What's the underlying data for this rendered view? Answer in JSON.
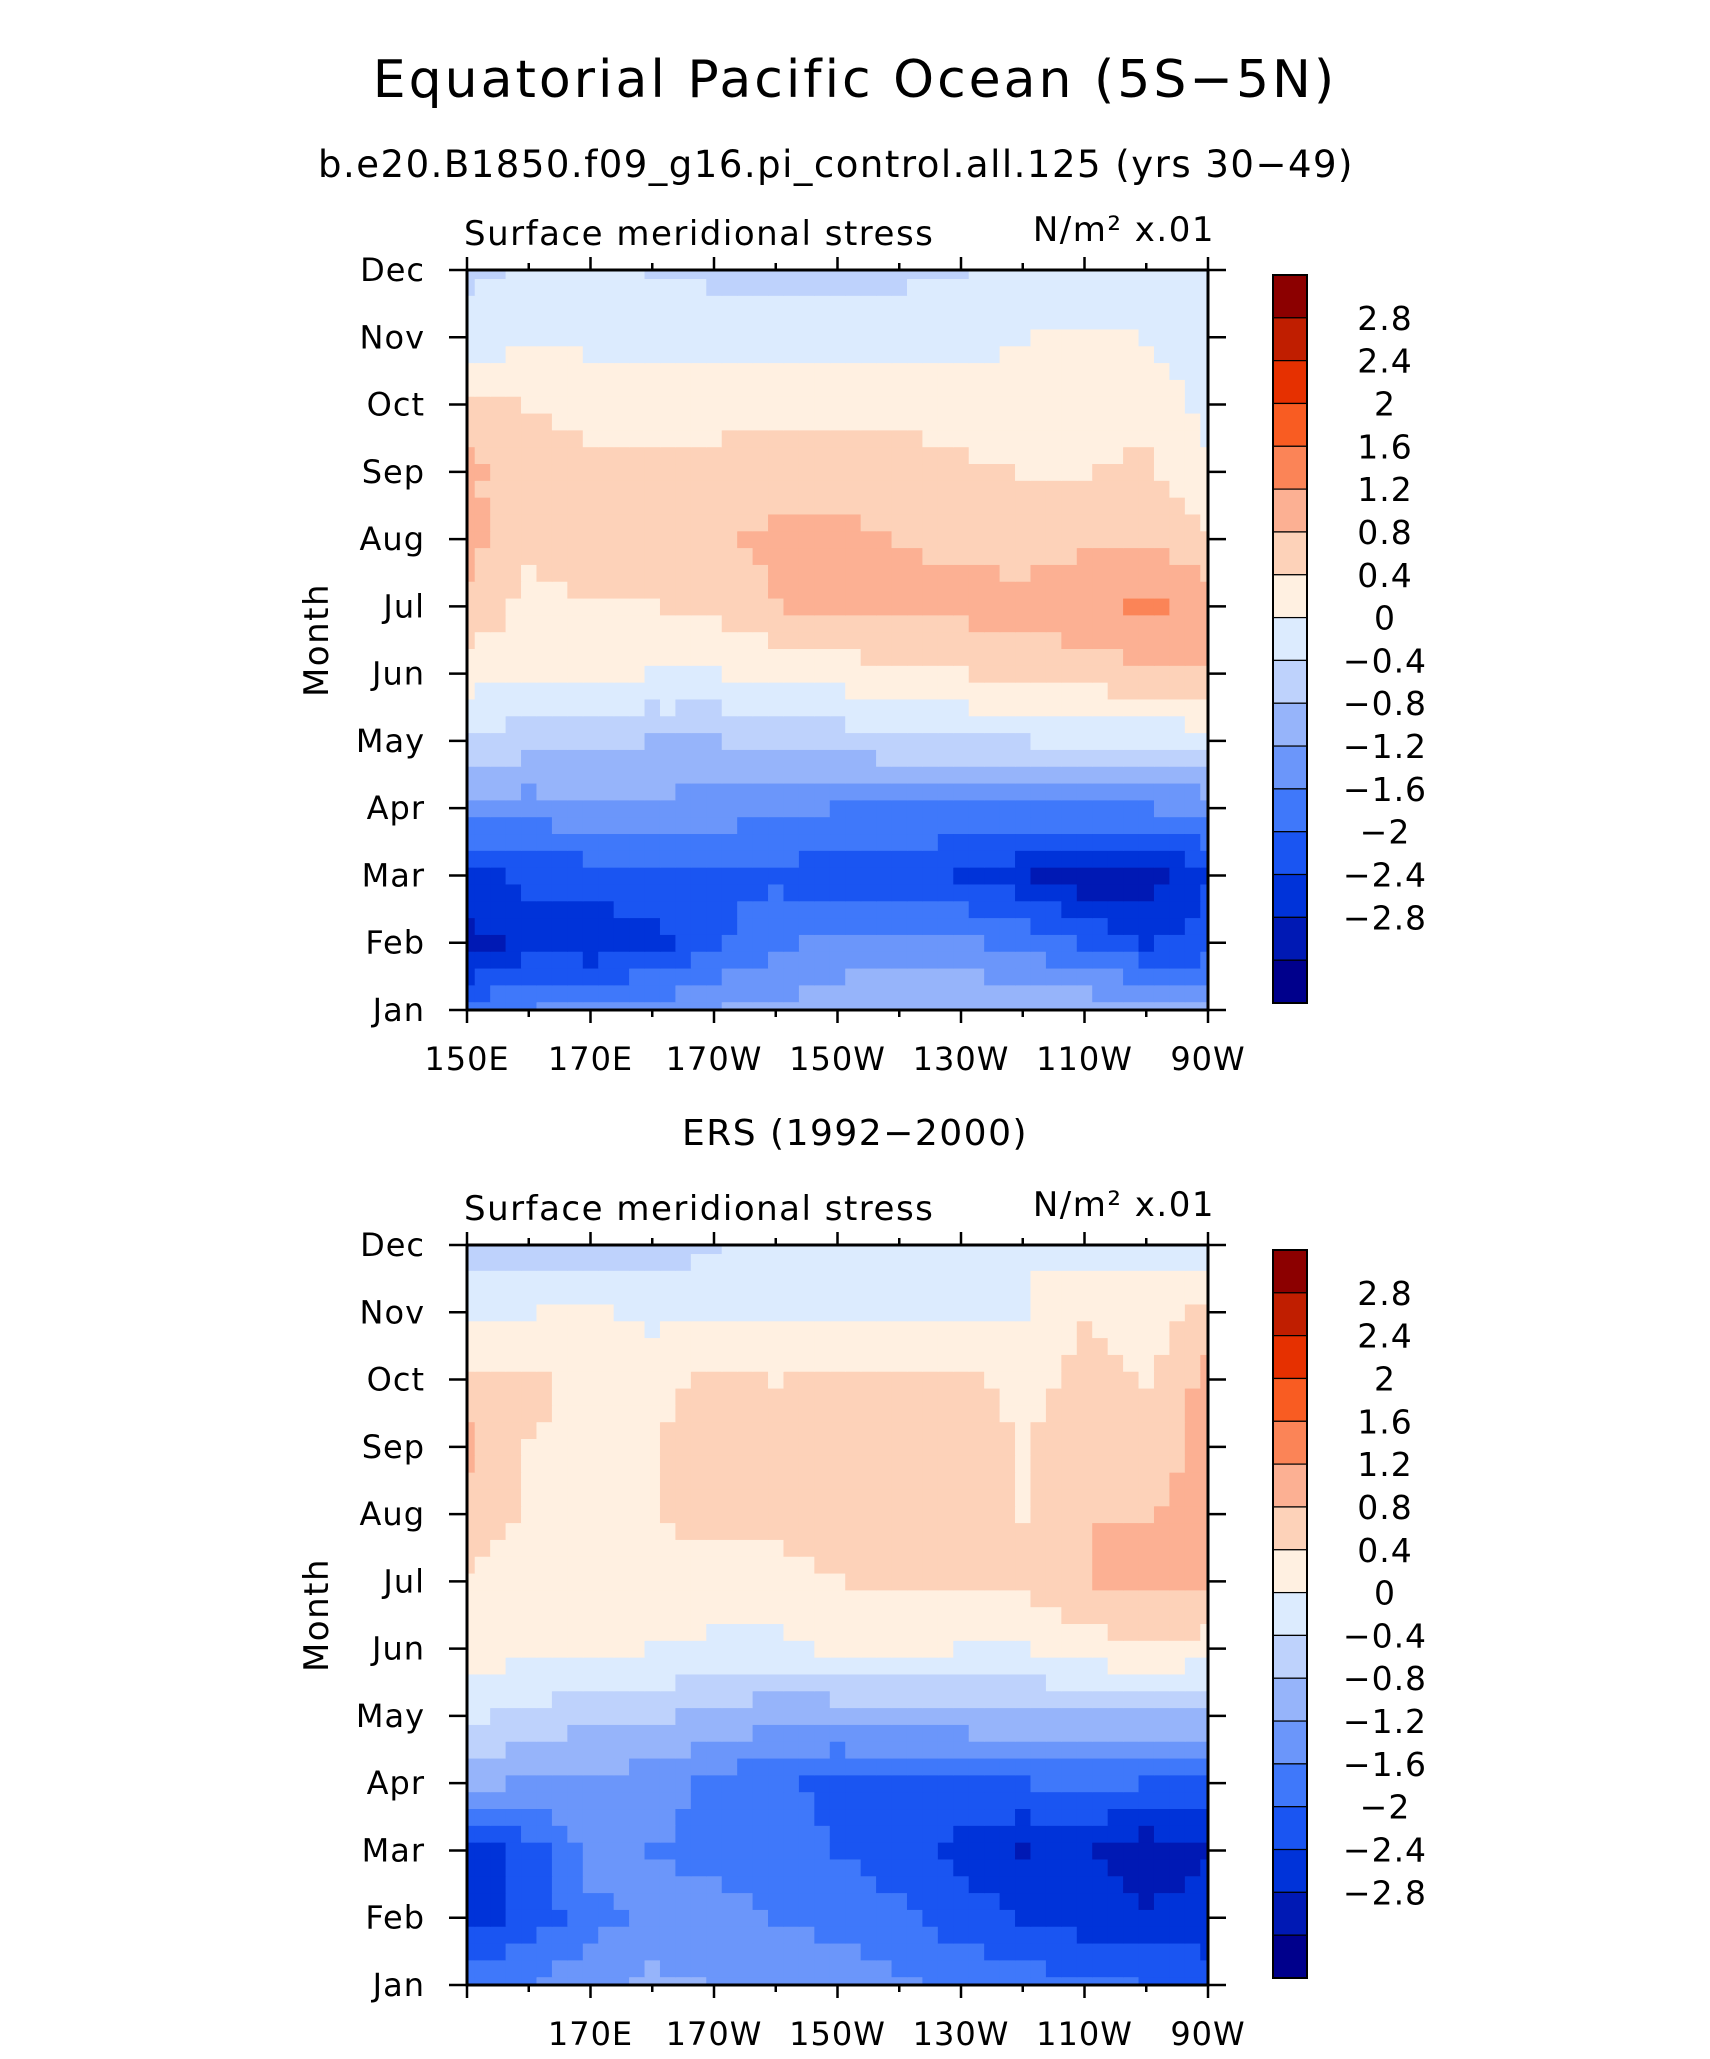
{
  "figure": {
    "title": "Equatorial Pacific Ocean (5S−5N)",
    "subtitle": "b.e20.B1850.f09_g16.pi_control.all.125 (yrs 30−49)",
    "colors": [
      "#00008c",
      "#0019b4",
      "#0033d9",
      "#1a55f2",
      "#3f78fa",
      "#6b96fa",
      "#96b4fa",
      "#bed2fc",
      "#dcebfe",
      "#fff0e1",
      "#fdd2b9",
      "#fcb093",
      "#fb8457",
      "#f95c22",
      "#e63000",
      "#c01e00",
      "#8c0000"
    ]
  },
  "chart_data": [
    {
      "type": "heatmap",
      "panel_title": "",
      "title": "Surface meridional stress",
      "units": "N/m² x.01",
      "ylabel": "Month",
      "x_tick_labels": [
        "150E",
        "170E",
        "170W",
        "150W",
        "130W",
        "110W",
        "90W"
      ],
      "x_ticks_deg_east": [
        150,
        170,
        190,
        210,
        230,
        250,
        270
      ],
      "xlim": [
        150,
        270
      ],
      "y_tick_labels": [
        "Jan",
        "Feb",
        "Mar",
        "Apr",
        "May",
        "Jun",
        "Jul",
        "Aug",
        "Sep",
        "Oct",
        "Nov",
        "Dec"
      ],
      "ylim": [
        1,
        12
      ],
      "colorbar_labels": [
        "2.8",
        "2.4",
        "2",
        "1.6",
        "1.2",
        "0.8",
        "0.4",
        "0",
        "−0.4",
        "−0.8",
        "−1.2",
        "−1.6",
        "−2",
        "−2.4",
        "−2.8"
      ],
      "levels": [
        -2.8,
        -2.4,
        -2.0,
        -1.6,
        -1.2,
        -0.8,
        -0.4,
        0,
        0.4,
        0.8,
        1.2,
        1.6,
        2.0,
        2.4,
        2.8
      ],
      "x": [
        150,
        160,
        170,
        180,
        190,
        200,
        210,
        220,
        230,
        240,
        250,
        260,
        270
      ],
      "values": [
        [
          -1.4,
          -1.2,
          -1.1,
          -1.0,
          -0.8,
          -0.7,
          -0.6,
          -0.5,
          -0.4,
          -0.4,
          -0.5,
          -0.6,
          -0.7
        ],
        [
          -2.6,
          -2.2,
          -2.3,
          -2.1,
          -1.7,
          -1.3,
          -1.0,
          -1.0,
          -1.1,
          -1.3,
          -1.6,
          -2.0,
          -1.9
        ],
        [
          -2.1,
          -1.9,
          -1.8,
          -1.7,
          -1.6,
          -1.7,
          -1.9,
          -1.9,
          -2.0,
          -2.3,
          -2.7,
          -2.6,
          -2.0
        ],
        [
          -1.0,
          -1.0,
          -0.9,
          -0.9,
          -1.0,
          -1.1,
          -1.2,
          -1.2,
          -1.3,
          -1.3,
          -1.2,
          -1.2,
          -1.1
        ],
        [
          -0.1,
          -0.2,
          -0.3,
          -0.4,
          -0.4,
          -0.3,
          -0.2,
          -0.1,
          0.0,
          0.0,
          0.05,
          0.1,
          0.2
        ],
        [
          0.6,
          0.5,
          0.5,
          0.4,
          0.4,
          0.5,
          0.6,
          0.7,
          0.8,
          0.9,
          1.0,
          1.1,
          1.2
        ],
        [
          1.1,
          0.7,
          0.8,
          0.8,
          0.9,
          1.2,
          1.3,
          1.3,
          1.3,
          1.4,
          1.5,
          1.7,
          1.5
        ],
        [
          1.3,
          0.9,
          1.0,
          1.0,
          1.1,
          1.3,
          1.3,
          1.2,
          1.1,
          1.0,
          1.1,
          1.2,
          0.9
        ],
        [
          1.3,
          0.9,
          0.9,
          0.9,
          0.9,
          1.0,
          1.0,
          1.0,
          0.9,
          0.8,
          0.8,
          0.9,
          0.5
        ],
        [
          0.9,
          0.8,
          0.7,
          0.7,
          0.7,
          0.7,
          0.7,
          0.7,
          0.6,
          0.5,
          0.7,
          0.6,
          0.3
        ],
        [
          0.2,
          0.3,
          0.3,
          0.3,
          0.3,
          0.3,
          0.3,
          0.3,
          0.3,
          0.4,
          0.5,
          0.4,
          0.2
        ],
        [
          -0.1,
          0.1,
          0.1,
          0.0,
          -0.1,
          -0.2,
          -0.2,
          -0.1,
          0.0,
          0.1,
          0.1,
          0.1,
          0.1
        ]
      ]
    },
    {
      "type": "heatmap",
      "panel_title": "ERS (1992−2000)",
      "title": "Surface meridional stress",
      "units": "N/m² x.01",
      "ylabel": "Month",
      "x_tick_labels": [
        "170E",
        "170W",
        "150W",
        "130W",
        "110W",
        "90W"
      ],
      "x_ticks_deg_east": [
        170,
        190,
        210,
        230,
        250,
        270
      ],
      "xlim": [
        150,
        270
      ],
      "y_tick_labels": [
        "Jan",
        "Feb",
        "Mar",
        "Apr",
        "May",
        "Jun",
        "Jul",
        "Aug",
        "Sep",
        "Oct",
        "Nov",
        "Dec"
      ],
      "ylim": [
        1,
        12
      ],
      "colorbar_labels": [
        "2.8",
        "2.4",
        "2",
        "1.6",
        "1.2",
        "0.8",
        "0.4",
        "0",
        "−0.4",
        "−0.8",
        "−1.2",
        "−1.6",
        "−2",
        "−2.4",
        "−2.8"
      ],
      "levels": [
        -2.8,
        -2.4,
        -2.0,
        -1.6,
        -1.2,
        -0.8,
        -0.4,
        0,
        0.4,
        0.8,
        1.2,
        1.6,
        2.0,
        2.4,
        2.8
      ],
      "x": [
        150,
        160,
        170,
        180,
        190,
        200,
        210,
        220,
        230,
        240,
        250,
        260,
        270
      ],
      "values": [
        [
          -1.3,
          -1.2,
          -0.9,
          -0.7,
          -0.8,
          -0.9,
          -1.0,
          -1.1,
          -1.3,
          -1.4,
          -1.5,
          -1.6,
          -1.7
        ],
        [
          -2.2,
          -1.9,
          -1.3,
          -1.1,
          -1.0,
          -1.2,
          -1.3,
          -1.5,
          -1.8,
          -2.0,
          -2.2,
          -2.3,
          -2.3
        ],
        [
          -2.2,
          -1.8,
          -1.0,
          -1.2,
          -1.3,
          -1.5,
          -1.6,
          -1.8,
          -2.1,
          -2.4,
          -2.3,
          -2.7,
          -2.4
        ],
        [
          -0.6,
          -0.9,
          -0.9,
          -1.0,
          -1.3,
          -1.5,
          -1.7,
          -1.7,
          -1.7,
          -1.6,
          -1.5,
          -1.6,
          -1.6
        ],
        [
          0.1,
          -0.1,
          -0.3,
          -0.3,
          -0.5,
          -0.7,
          -0.7,
          -0.6,
          -0.5,
          -0.5,
          -0.4,
          -0.5,
          -0.4
        ],
        [
          0.6,
          0.5,
          0.5,
          0.4,
          0.3,
          0.3,
          0.5,
          0.5,
          0.4,
          0.4,
          0.6,
          0.8,
          0.6
        ],
        [
          0.8,
          0.7,
          0.7,
          0.7,
          0.7,
          0.7,
          0.8,
          0.9,
          0.9,
          0.9,
          1.2,
          1.3,
          1.3
        ],
        [
          0.9,
          0.8,
          0.7,
          0.8,
          0.9,
          0.9,
          1.0,
          1.0,
          1.0,
          0.8,
          1.2,
          1.2,
          1.4
        ],
        [
          1.3,
          0.8,
          0.7,
          0.8,
          1.0,
          1.0,
          0.9,
          1.0,
          0.9,
          0.8,
          0.9,
          0.9,
          1.4
        ],
        [
          0.9,
          0.9,
          0.7,
          0.7,
          0.9,
          0.8,
          0.9,
          0.9,
          0.9,
          0.7,
          0.9,
          0.8,
          1.3
        ],
        [
          0.3,
          0.4,
          0.5,
          0.3,
          0.3,
          0.3,
          0.4,
          0.4,
          0.4,
          0.4,
          0.8,
          0.6,
          0.9
        ],
        [
          -0.2,
          -0.3,
          -0.3,
          -0.2,
          0.0,
          0.1,
          0.2,
          0.2,
          0.3,
          0.4,
          0.2,
          0.3,
          0.2
        ]
      ]
    }
  ]
}
